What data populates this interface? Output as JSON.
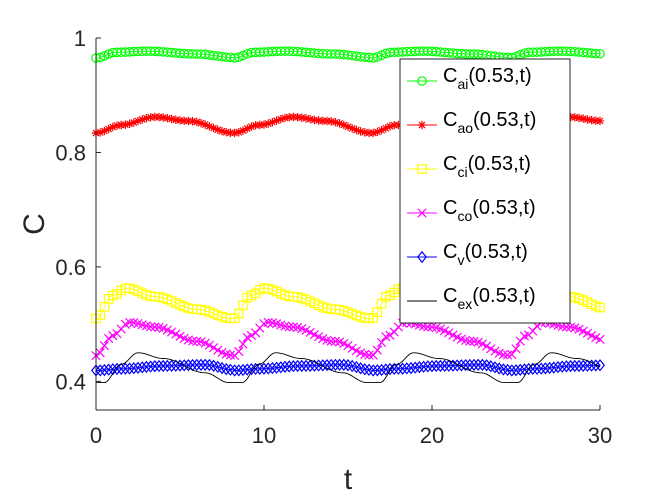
{
  "chart_data": {
    "type": "line",
    "title": "",
    "xlabel": "t",
    "ylabel": "C",
    "xlim": [
      0,
      30
    ],
    "ylim": [
      0.35,
      1.0
    ],
    "xticks": [
      0,
      10,
      20,
      30
    ],
    "xtick_labels": [
      "0",
      "10",
      "20",
      "30"
    ],
    "yticks": [
      0.4,
      0.6,
      0.8,
      1.0
    ],
    "ytick_labels": [
      "0.4",
      "0.6",
      "0.8",
      "1"
    ],
    "grid": false,
    "legend_position": "top-right",
    "period": 8.2,
    "series": [
      {
        "name": "C_ai(0.53,t)",
        "label_main": "C",
        "label_sub": "ai",
        "label_rest": "(0.53,t)",
        "color": "#00ff00",
        "marker": "circle",
        "profile": [
          [
            0,
            0.965
          ],
          [
            1.2,
            0.975
          ],
          [
            3,
            0.977
          ],
          [
            6,
            0.972
          ],
          [
            8.2,
            0.966
          ]
        ]
      },
      {
        "name": "C_ao(0.53,t)",
        "label_main": "C",
        "label_sub": "ao",
        "label_rest": "(0.53,t)",
        "color": "#ff0000",
        "marker": "star",
        "profile": [
          [
            0,
            0.834
          ],
          [
            1.5,
            0.848
          ],
          [
            3.5,
            0.862
          ],
          [
            5.5,
            0.855
          ],
          [
            8.2,
            0.834
          ]
        ]
      },
      {
        "name": "C_ci(0.53,t)",
        "label_main": "C",
        "label_sub": "ci",
        "label_rest": "(0.53,t)",
        "color": "#ffff00",
        "marker": "square",
        "profile": [
          [
            0,
            0.51
          ],
          [
            1,
            0.55
          ],
          [
            1.8,
            0.563
          ],
          [
            3.5,
            0.548
          ],
          [
            6,
            0.526
          ],
          [
            8.1,
            0.51
          ]
        ]
      },
      {
        "name": "C_co(0.53,t)",
        "label_main": "C",
        "label_sub": "co",
        "label_rest": "(0.53,t)",
        "color": "#ff00ff",
        "marker": "x",
        "profile": [
          [
            0,
            0.445
          ],
          [
            1,
            0.48
          ],
          [
            2,
            0.503
          ],
          [
            3.5,
            0.495
          ],
          [
            6,
            0.47
          ],
          [
            8.1,
            0.446
          ]
        ]
      },
      {
        "name": "C_v(0.53,t)",
        "label_main": "C",
        "label_sub": "v",
        "label_rest": "(0.53,t)",
        "color": "#0000ff",
        "marker": "diamond",
        "profile": [
          [
            0,
            0.419
          ],
          [
            1.5,
            0.422
          ],
          [
            4,
            0.427
          ],
          [
            6.5,
            0.429
          ],
          [
            8.2,
            0.42
          ]
        ]
      },
      {
        "name": "C_ex(0.53,t)",
        "label_main": "C",
        "label_sub": "ex",
        "label_rest": "(0.53,t)",
        "color": "#000000",
        "marker": "none",
        "profile": [
          [
            0,
            0.398
          ],
          [
            0.5,
            0.398
          ],
          [
            1.5,
            0.43
          ],
          [
            2.5,
            0.45
          ],
          [
            4,
            0.44
          ],
          [
            6.5,
            0.415
          ],
          [
            7.9,
            0.398
          ],
          [
            8.2,
            0.398
          ]
        ]
      }
    ]
  }
}
